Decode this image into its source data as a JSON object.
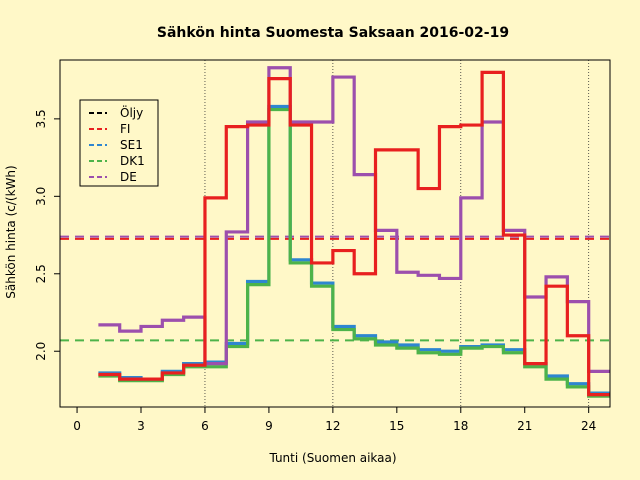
{
  "chart_data": {
    "type": "line",
    "step": true,
    "title": "Sähkön hinta Suomesta Saksaan 2016-02-19",
    "xlabel": "Tunti (Suomen aikaa)",
    "ylabel": "Sähkön hinta (c/(kWh)",
    "xlim": [
      -0.8,
      25.0
    ],
    "ylim": [
      1.64,
      3.88
    ],
    "x_ticks": [
      0,
      3,
      6,
      9,
      12,
      15,
      18,
      21,
      24
    ],
    "y_ticks": [
      2.0,
      2.5,
      3.0,
      3.5
    ],
    "y_tick_labels": [
      "2.0",
      "2.5",
      "3.0",
      "3.5"
    ],
    "vertical_gridlines": [
      6,
      12,
      18,
      24
    ],
    "legend_position": "top-left",
    "legend": [
      {
        "name": "Öljy",
        "color": "#000000"
      },
      {
        "name": "FI",
        "color": "#e8201f"
      },
      {
        "name": "SE1",
        "color": "#2e86d0"
      },
      {
        "name": "DK1",
        "color": "#4db34a"
      },
      {
        "name": "DE",
        "color": "#9c4fad"
      }
    ],
    "reference_lines": [
      {
        "name": "FI",
        "value": 2.725,
        "color": "#e8201f"
      },
      {
        "name": "DE",
        "value": 2.74,
        "color": "#9c4fad"
      },
      {
        "name": "DK1",
        "value": 2.07,
        "color": "#4db34a"
      }
    ],
    "x": [
      1,
      2,
      3,
      4,
      5,
      6,
      7,
      8,
      9,
      10,
      11,
      12,
      13,
      14,
      15,
      16,
      17,
      18,
      19,
      20,
      21,
      22,
      23,
      24,
      25
    ],
    "series": [
      {
        "name": "SE1",
        "color": "#2e86d0",
        "values": [
          1.86,
          1.83,
          1.82,
          1.87,
          1.92,
          1.93,
          2.05,
          2.45,
          3.58,
          2.59,
          2.44,
          2.16,
          2.1,
          2.06,
          2.04,
          2.01,
          2.0,
          2.03,
          2.04,
          2.01,
          1.92,
          1.84,
          1.79,
          1.73,
          1.73
        ]
      },
      {
        "name": "DK1",
        "color": "#4db34a",
        "values": [
          1.84,
          1.81,
          1.81,
          1.85,
          1.9,
          1.9,
          2.03,
          2.43,
          3.56,
          2.57,
          2.42,
          2.14,
          2.08,
          2.04,
          2.02,
          1.99,
          1.98,
          2.02,
          2.03,
          1.99,
          1.9,
          1.82,
          1.77,
          1.71,
          1.71
        ]
      },
      {
        "name": "DE",
        "color": "#9c4fad",
        "values": [
          2.17,
          2.13,
          2.16,
          2.2,
          2.22,
          1.92,
          2.77,
          3.48,
          3.83,
          3.48,
          3.48,
          3.77,
          3.14,
          2.78,
          2.51,
          2.49,
          2.47,
          2.99,
          3.48,
          2.78,
          2.35,
          2.48,
          2.32,
          1.87,
          1.87
        ]
      },
      {
        "name": "FI",
        "color": "#e8201f",
        "values": [
          1.85,
          1.82,
          1.82,
          1.86,
          1.91,
          2.99,
          3.45,
          3.46,
          3.76,
          3.46,
          2.57,
          2.65,
          2.5,
          3.3,
          3.3,
          3.05,
          3.45,
          3.46,
          3.8,
          2.75,
          1.92,
          2.42,
          2.1,
          1.72,
          1.72
        ]
      }
    ]
  }
}
